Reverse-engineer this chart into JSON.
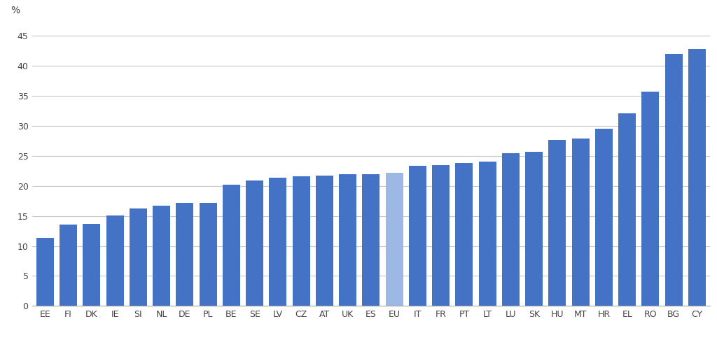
{
  "categories": [
    "EE",
    "FI",
    "DK",
    "IE",
    "SI",
    "NL",
    "DE",
    "PL",
    "BE",
    "SE",
    "LV",
    "CZ",
    "AT",
    "UK",
    "ES",
    "EU",
    "IT",
    "FR",
    "PT",
    "LT",
    "LU",
    "SK",
    "HU",
    "MT",
    "HR",
    "EL",
    "RO",
    "BG",
    "CY"
  ],
  "values": [
    11.3,
    13.6,
    13.7,
    15.1,
    16.3,
    16.7,
    17.2,
    17.2,
    20.2,
    20.9,
    21.4,
    21.6,
    21.7,
    21.9,
    22.0,
    22.2,
    23.3,
    23.5,
    23.8,
    24.0,
    25.5,
    25.7,
    27.7,
    27.9,
    29.5,
    32.1,
    35.7,
    42.0,
    42.8
  ],
  "bar_color": "#4472C4",
  "eu_bar_color": "#9DB8E4",
  "ylabel": "%",
  "ylim": [
    0,
    47
  ],
  "yticks": [
    0,
    5,
    10,
    15,
    20,
    25,
    30,
    35,
    40,
    45
  ],
  "grid_color": "#C8C8C8",
  "background_color": "#FFFFFF",
  "figsize": [
    10.24,
    4.86
  ],
  "dpi": 100
}
